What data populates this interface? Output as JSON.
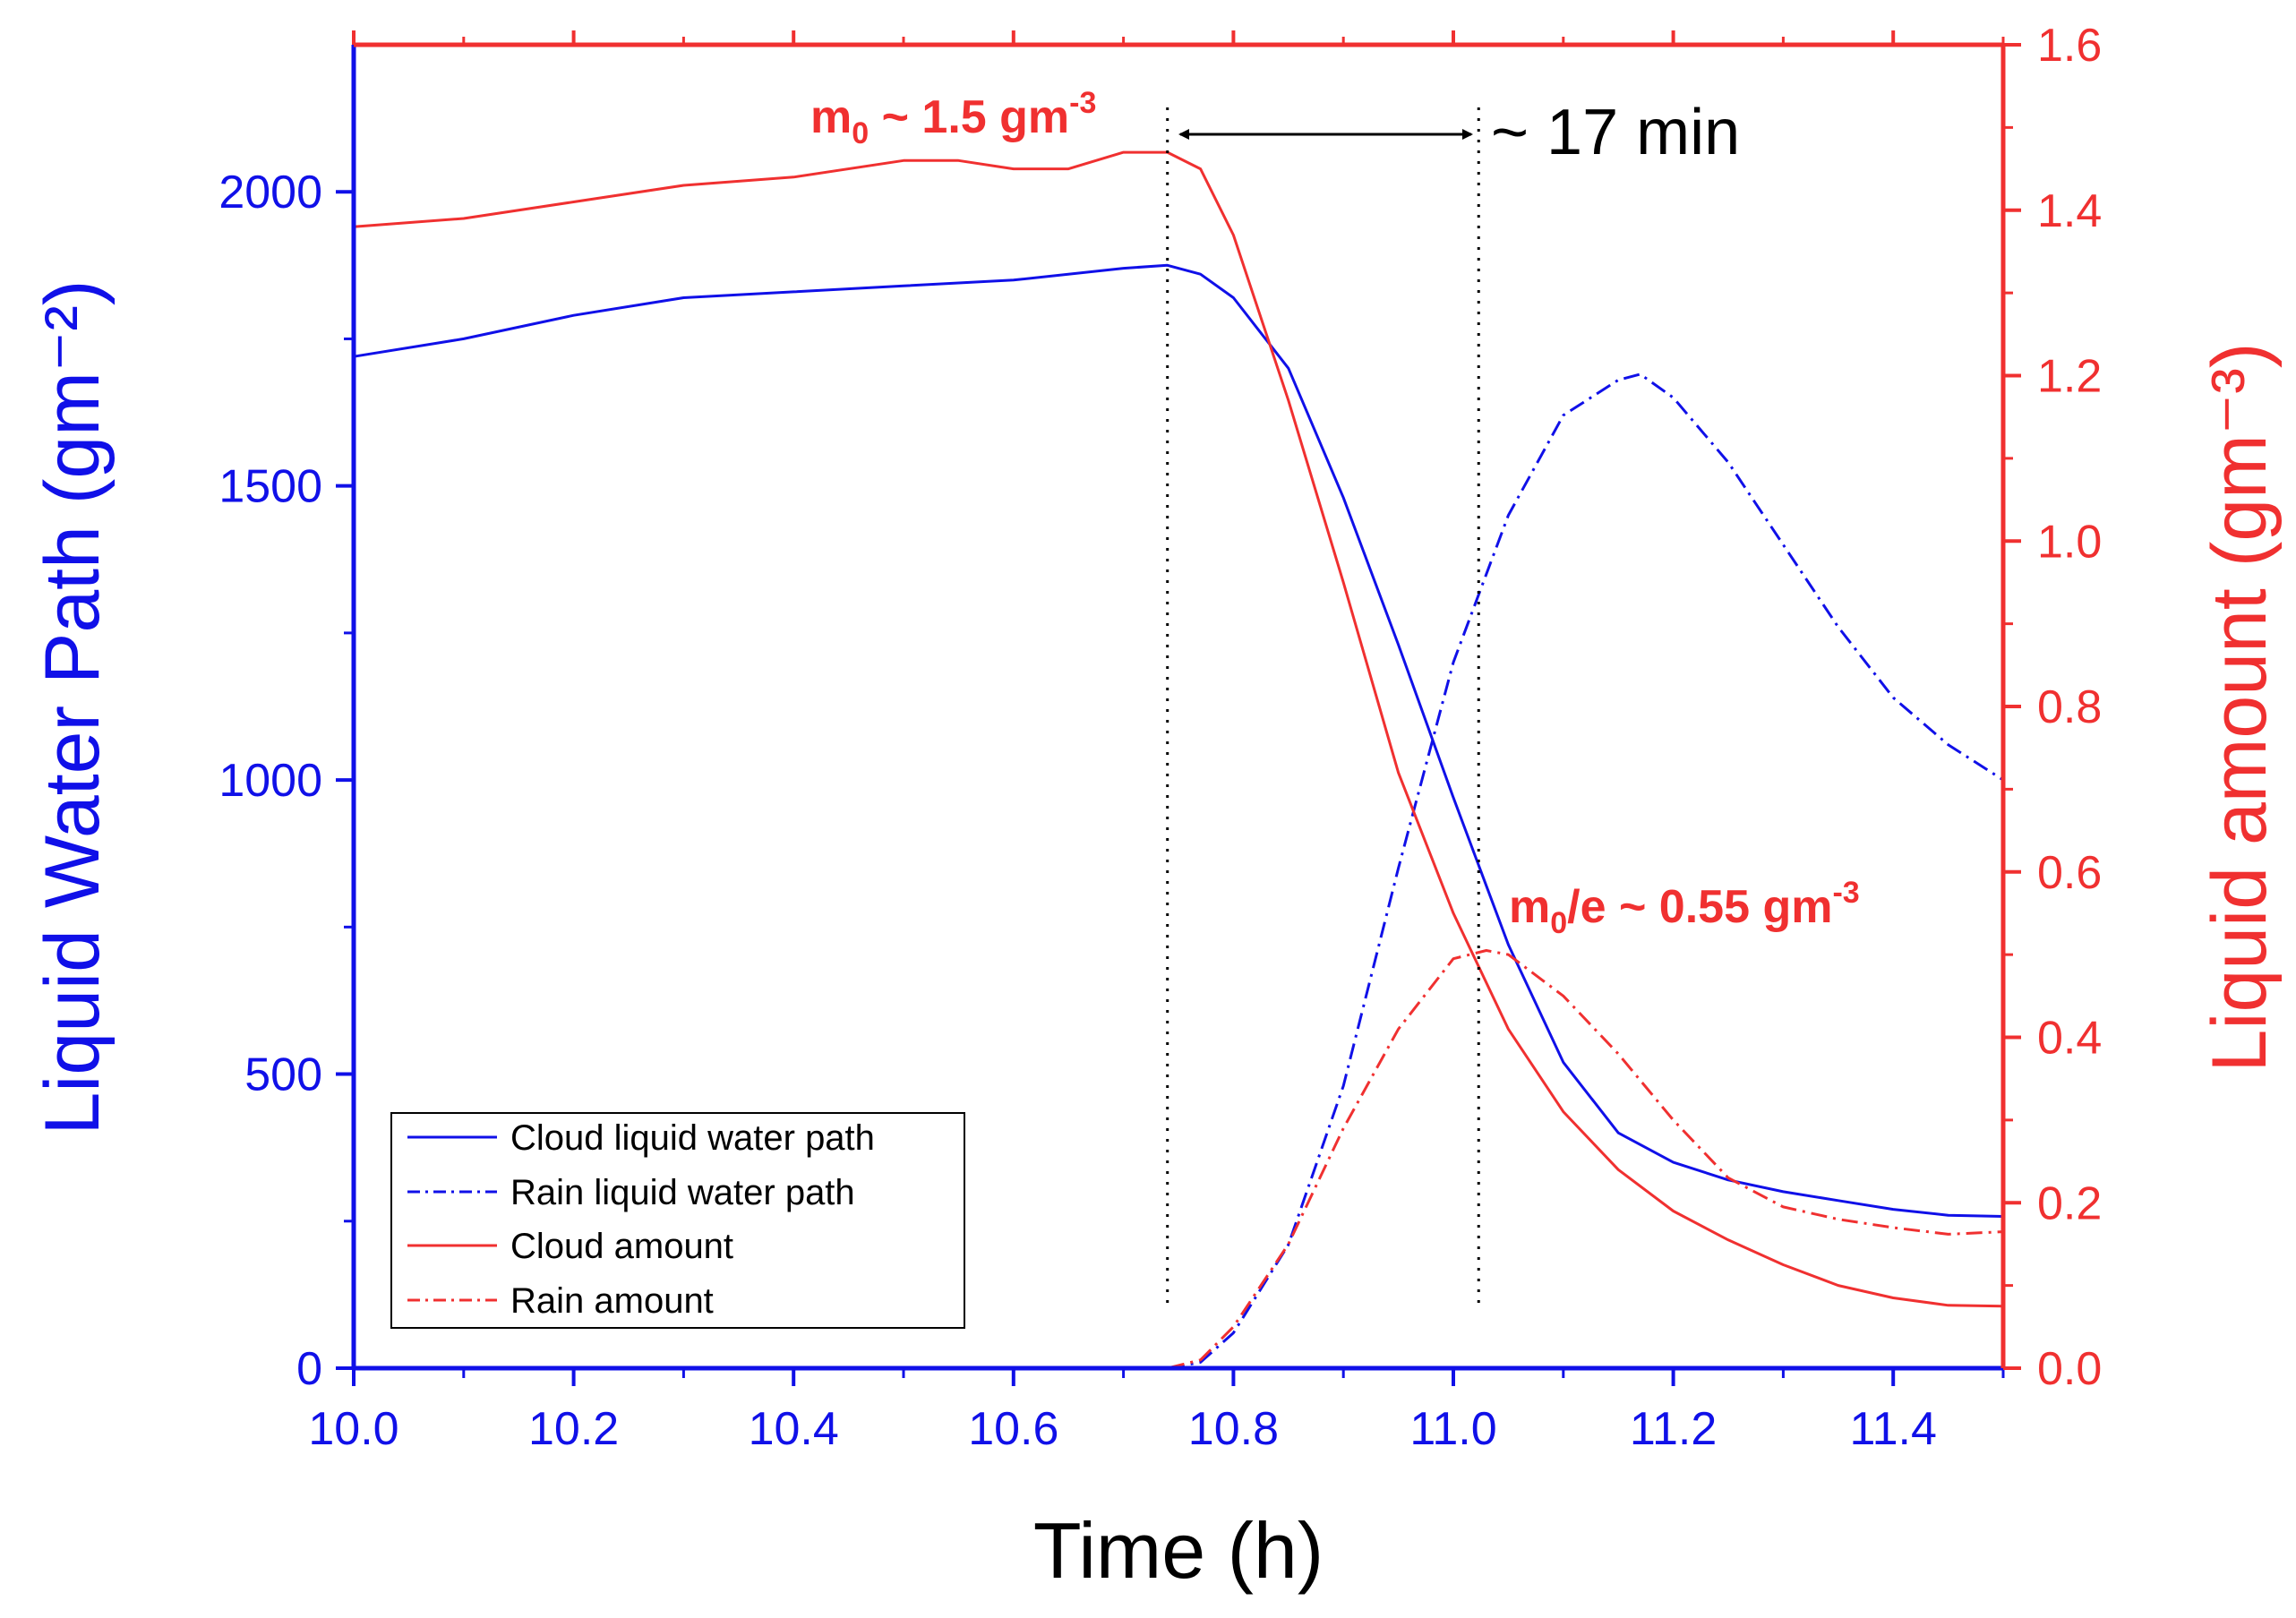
{
  "chart_data": {
    "type": "line",
    "xlabel": "Time (h)",
    "ylabel_left": "Liquid Water Path (gm⁻²)",
    "ylabel_right": "Liquid amount (gm⁻³)",
    "xlim": [
      10.0,
      11.5
    ],
    "ylim_left": [
      0,
      2250
    ],
    "ylim_right": [
      0,
      1.6
    ],
    "x_ticks": [
      "10.0",
      "10.2",
      "10.4",
      "10.6",
      "10.8",
      "11.0",
      "11.2",
      "11.4"
    ],
    "y_left_ticks": [
      "0",
      "500",
      "1000",
      "1500",
      "2000"
    ],
    "y_right_ticks": [
      "0.0",
      "0.2",
      "0.4",
      "0.6",
      "0.8",
      "1.0",
      "1.2",
      "1.4",
      "1.6"
    ],
    "colors": {
      "left_axis": "#1010e8",
      "right_axis": "#f03030",
      "cloud_lwp": "#1010e8",
      "rain_lwp": "#1010e8",
      "cloud_amount": "#f03030",
      "rain_amount": "#f03030"
    },
    "series": [
      {
        "name": "Cloud liquid water path",
        "axis": "left",
        "style": "solid",
        "x": [
          10.0,
          10.1,
          10.2,
          10.3,
          10.4,
          10.5,
          10.6,
          10.7,
          10.74,
          10.77,
          10.8,
          10.85,
          10.9,
          10.95,
          11.0,
          11.05,
          11.1,
          11.15,
          11.2,
          11.25,
          11.3,
          11.35,
          11.4,
          11.45,
          11.5
        ],
        "values": [
          1720,
          1750,
          1790,
          1820,
          1830,
          1840,
          1850,
          1870,
          1875,
          1860,
          1820,
          1700,
          1480,
          1230,
          970,
          720,
          520,
          400,
          350,
          320,
          300,
          285,
          270,
          260,
          258
        ]
      },
      {
        "name": "Rain liquid water path",
        "axis": "left",
        "style": "dashdot",
        "x": [
          10.0,
          10.74,
          10.77,
          10.8,
          10.85,
          10.9,
          10.95,
          11.0,
          11.05,
          11.1,
          11.15,
          11.17,
          11.2,
          11.25,
          11.3,
          11.35,
          11.4,
          11.45,
          11.5
        ],
        "values": [
          0,
          0,
          10,
          60,
          210,
          480,
          850,
          1200,
          1450,
          1620,
          1680,
          1690,
          1650,
          1540,
          1400,
          1260,
          1140,
          1060,
          1000
        ]
      },
      {
        "name": "Cloud amount",
        "axis": "right",
        "style": "solid",
        "x": [
          10.0,
          10.1,
          10.2,
          10.3,
          10.4,
          10.5,
          10.55,
          10.6,
          10.65,
          10.7,
          10.74,
          10.77,
          10.8,
          10.85,
          10.9,
          10.95,
          11.0,
          11.05,
          11.1,
          11.15,
          11.2,
          11.25,
          11.3,
          11.35,
          11.4,
          11.45,
          11.5
        ],
        "values": [
          1.38,
          1.39,
          1.41,
          1.43,
          1.44,
          1.46,
          1.46,
          1.45,
          1.45,
          1.47,
          1.47,
          1.45,
          1.37,
          1.17,
          0.95,
          0.72,
          0.55,
          0.41,
          0.31,
          0.24,
          0.19,
          0.155,
          0.125,
          0.1,
          0.085,
          0.076,
          0.075
        ]
      },
      {
        "name": "Rain amount",
        "axis": "right",
        "style": "dashdot",
        "x": [
          10.0,
          10.74,
          10.77,
          10.8,
          10.85,
          10.9,
          10.95,
          11.0,
          11.03,
          11.05,
          11.1,
          11.15,
          11.2,
          11.25,
          11.3,
          11.35,
          11.4,
          11.45,
          11.5
        ],
        "values": [
          0,
          0,
          0.01,
          0.05,
          0.15,
          0.29,
          0.41,
          0.495,
          0.505,
          0.5,
          0.45,
          0.38,
          0.3,
          0.23,
          0.195,
          0.18,
          0.17,
          0.162,
          0.165
        ]
      }
    ],
    "legend": [
      "Cloud liquid water path",
      "Rain liquid water path",
      "Cloud amount",
      "Rain amount"
    ],
    "legend_position": "bottom-left",
    "annotations": {
      "m0_prefix": "m",
      "m0_sub": "0",
      "m0_text": " ~ 1.5 gm",
      "m0_sup": "-3",
      "m0e_prefix": "m",
      "m0e_sub": "0",
      "m0e_text": "/e ~ 0.55 gm",
      "m0e_sup": "-3",
      "interval_text": "~ 17 min",
      "vline_times": [
        10.74,
        11.023
      ]
    }
  }
}
